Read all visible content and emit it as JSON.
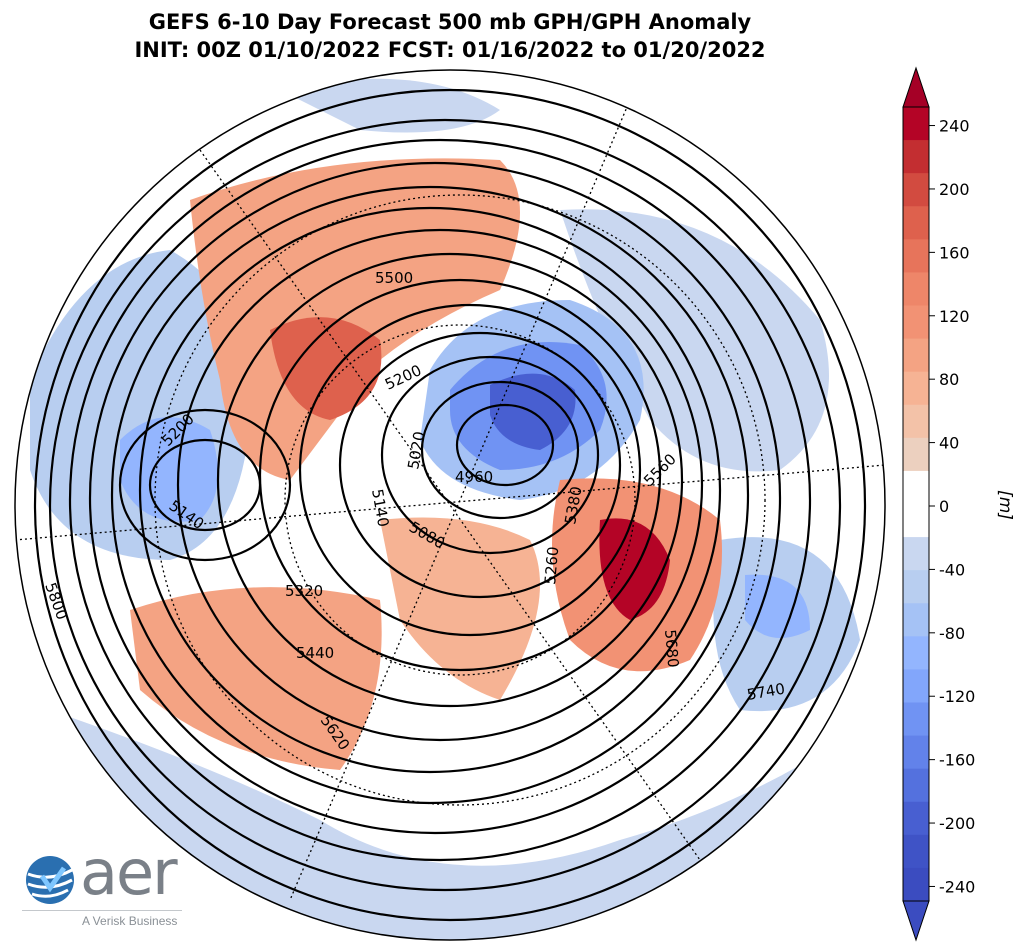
{
  "title": {
    "line1": "GEFS 6-10 Day Forecast 500 mb GPH/GPH Anomaly",
    "line2": "INIT: 00Z 01/10/2022     FCST: 01/16/2022 to 01/20/2022"
  },
  "colorbar": {
    "unit_label": "[m]",
    "ticks": [
      "240",
      "200",
      "160",
      "120",
      "80",
      "40",
      "0",
      "-40",
      "-80",
      "-120",
      "-160",
      "-200",
      "-240"
    ],
    "colors": [
      "#b40426",
      "#c32e31",
      "#d24b40",
      "#de614d",
      "#e7745b",
      "#ee8669",
      "#f29274",
      "#f4a383",
      "#f6b394",
      "#f3c2a8",
      "#ecd0bf",
      "#ffffff",
      "#ffffff",
      "#c9d7f0",
      "#b8cef0",
      "#a5c2f5",
      "#93b5fe",
      "#82a6fb",
      "#7093f3",
      "#6282ea",
      "#5471de",
      "#485fd1",
      "#3f53c6",
      "#3b4cc0"
    ]
  },
  "contours": {
    "labels": [
      "5500",
      "5200",
      "5020",
      "4960",
      "5200",
      "5140",
      "5140",
      "5080",
      "5560",
      "5380",
      "5260",
      "5320",
      "5440",
      "5620",
      "5800",
      "5740",
      "5680"
    ]
  },
  "logo": {
    "word": "aer",
    "tagline": "A Verisk Business"
  }
}
